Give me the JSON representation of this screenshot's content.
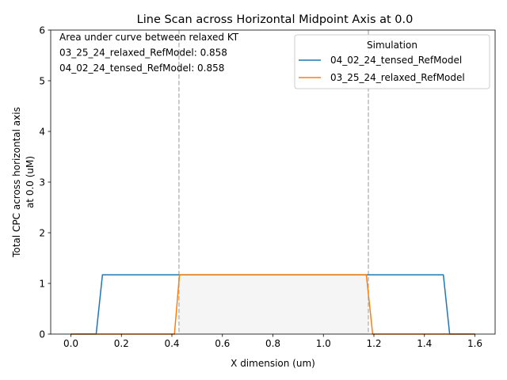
{
  "chart_data": {
    "type": "line",
    "title": "Line Scan across Horizontal Midpoint Axis at 0.0",
    "xlabel": "X dimension (um)",
    "ylabel_lines": [
      "Total CPC across horizontal axis",
      "at 0.0 (uM)"
    ],
    "xlim": [
      -0.08,
      1.68
    ],
    "ylim": [
      0,
      6
    ],
    "xticks": [
      0.0,
      0.2,
      0.4,
      0.6,
      0.8,
      1.0,
      1.2,
      1.4,
      1.6
    ],
    "xtick_labels": [
      "0.0",
      "0.2",
      "0.4",
      "0.6",
      "0.8",
      "1.0",
      "1.2",
      "1.4",
      "1.6"
    ],
    "yticks": [
      0,
      1,
      2,
      3,
      4,
      5,
      6
    ],
    "ytick_labels": [
      "0",
      "1",
      "2",
      "3",
      "4",
      "5",
      "6"
    ],
    "grid": false,
    "legend": {
      "title": "Simulation",
      "placement": "top-right"
    },
    "series": [
      {
        "name": "04_02_24_tensed_RefModel",
        "color": "#1f77b4",
        "x": [
          0.0,
          0.1,
          0.125,
          1.475,
          1.5,
          1.6
        ],
        "y": [
          0.0,
          0.0,
          1.17,
          1.17,
          0.0,
          0.0
        ]
      },
      {
        "name": "03_25_24_relaxed_RefModel",
        "color": "#ff7f0e",
        "x": [
          0.0,
          0.41,
          0.43,
          1.17,
          1.195,
          1.6
        ],
        "y": [
          0.0,
          0.0,
          1.17,
          1.17,
          0.0,
          0.0
        ]
      }
    ],
    "vlines": [
      0.428,
      1.178
    ],
    "vline_color": "#bbbbbb",
    "shaded_region": {
      "x": [
        0.428,
        0.43,
        1.17,
        1.178
      ],
      "y": [
        1.08,
        1.17,
        1.17,
        1.06
      ],
      "color": "#f5f5f5"
    },
    "annotations": [
      "Area under curve between relaxed KT",
      "03_25_24_relaxed_RefModel: 0.858",
      "04_02_24_tensed_RefModel: 0.858"
    ]
  }
}
